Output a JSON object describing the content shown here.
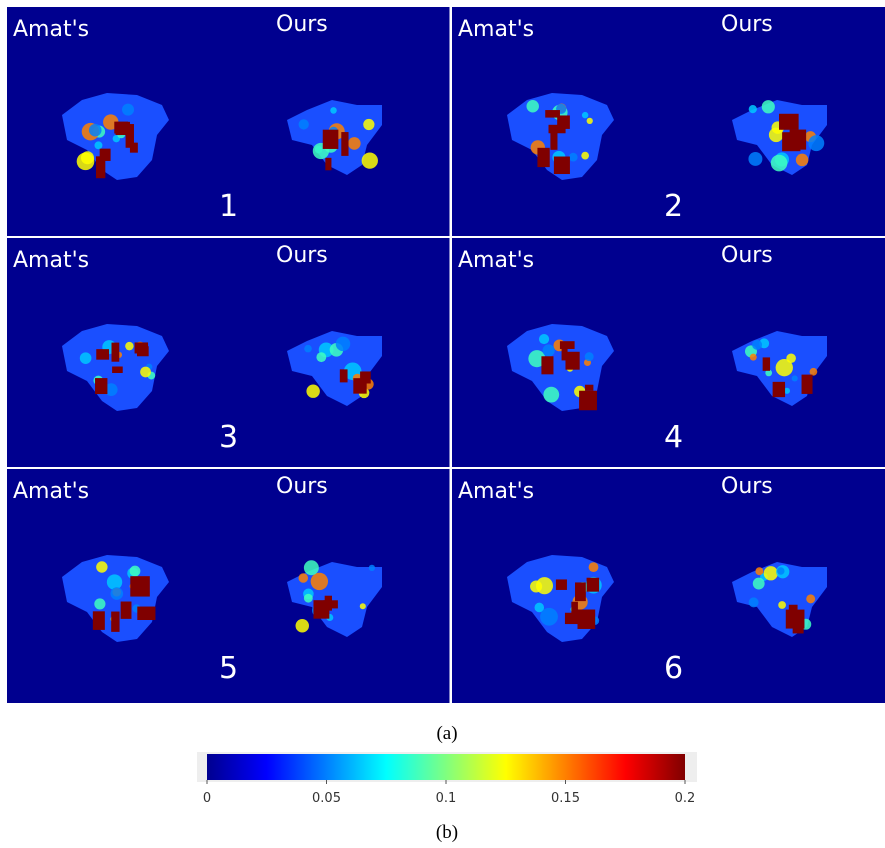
{
  "panels": [
    {
      "left_label": "Amat's",
      "right_label": "Ours",
      "number": 1
    },
    {
      "left_label": "Amat's",
      "right_label": "Ours",
      "number": 2
    },
    {
      "left_label": "Amat's",
      "right_label": "Ours",
      "number": 3
    },
    {
      "left_label": "Amat's",
      "right_label": "Ours",
      "number": 4
    },
    {
      "left_label": "Amat's",
      "right_label": "Ours",
      "number": 5
    },
    {
      "left_label": "Amat's",
      "right_label": "Ours",
      "number": 6
    }
  ],
  "captions": [
    "(a)",
    "(b)"
  ],
  "colorbar": {
    "lim": [
      0,
      0.2
    ],
    "ticks": [
      0,
      0.05,
      0.1,
      0.15,
      0.2
    ]
  }
}
